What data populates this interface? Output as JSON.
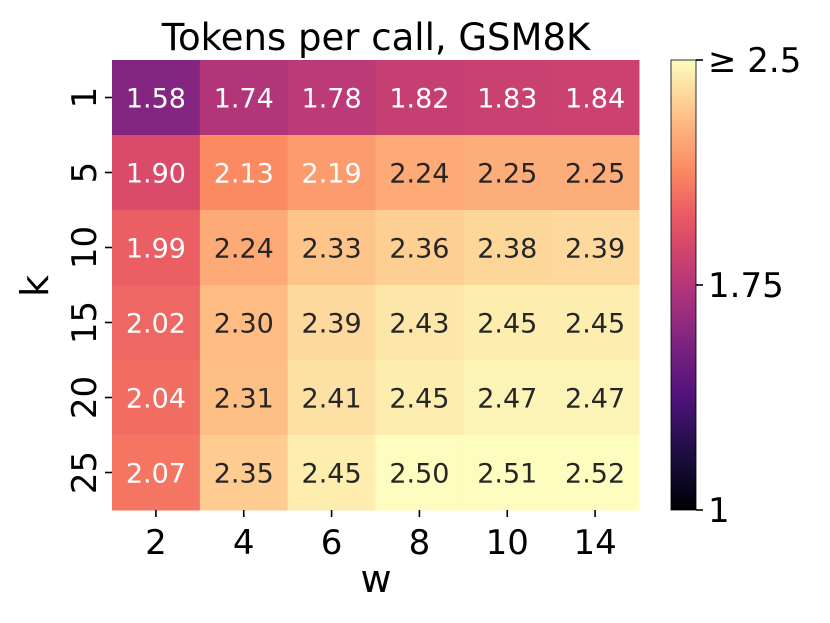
{
  "chart_data": {
    "type": "heatmap",
    "title": "Tokens per call, GSM8K",
    "xlabel": "w",
    "ylabel": "k",
    "x_categories": [
      "2",
      "4",
      "6",
      "8",
      "10",
      "14"
    ],
    "y_categories": [
      "1",
      "5",
      "10",
      "15",
      "20",
      "25"
    ],
    "values": [
      [
        1.58,
        1.74,
        1.78,
        1.82,
        1.83,
        1.84
      ],
      [
        1.9,
        2.13,
        2.19,
        2.24,
        2.25,
        2.25
      ],
      [
        1.99,
        2.24,
        2.33,
        2.36,
        2.38,
        2.39
      ],
      [
        2.02,
        2.3,
        2.39,
        2.43,
        2.45,
        2.45
      ],
      [
        2.04,
        2.31,
        2.41,
        2.45,
        2.47,
        2.47
      ],
      [
        2.07,
        2.35,
        2.45,
        2.5,
        2.51,
        2.52
      ]
    ],
    "value_labels": [
      [
        "1.58",
        "1.74",
        "1.78",
        "1.82",
        "1.83",
        "1.84"
      ],
      [
        "1.90",
        "2.13",
        "2.19",
        "2.24",
        "2.25",
        "2.25"
      ],
      [
        "1.99",
        "2.24",
        "2.33",
        "2.36",
        "2.38",
        "2.39"
      ],
      [
        "2.02",
        "2.30",
        "2.39",
        "2.43",
        "2.45",
        "2.45"
      ],
      [
        "2.04",
        "2.31",
        "2.41",
        "2.45",
        "2.47",
        "2.47"
      ],
      [
        "2.07",
        "2.35",
        "2.45",
        "2.50",
        "2.51",
        "2.52"
      ]
    ],
    "colormap": "magma",
    "color_range": [
      1,
      2.5
    ],
    "colorbar": {
      "ticks": [
        1,
        1.75,
        2.5
      ],
      "tick_labels": [
        "1",
        "1.75",
        "≥ 2.5"
      ]
    }
  }
}
